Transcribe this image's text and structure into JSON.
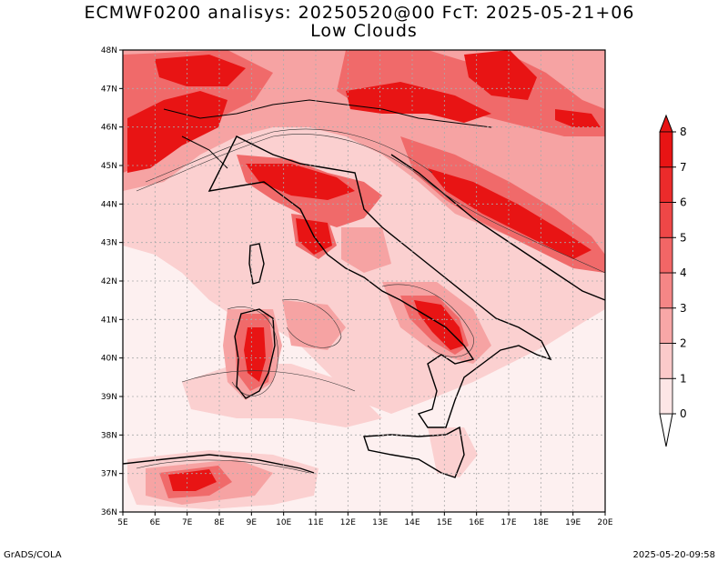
{
  "title_line1": "ECMWF0200 analisys: 20250520@00 FcT: 2025-05-21+06",
  "title_line2": "Low Clouds",
  "footer_left": "GrADS/COLA",
  "footer_right": "2025-05-20-09:58",
  "map": {
    "lon_min": 5,
    "lon_max": 20,
    "lat_min": 36,
    "lat_max": 48,
    "lon_ticks": [
      "5E",
      "6E",
      "7E",
      "8E",
      "9E",
      "10E",
      "11E",
      "12E",
      "13E",
      "14E",
      "15E",
      "16E",
      "17E",
      "18E",
      "19E",
      "20E"
    ],
    "lat_ticks": [
      "36N",
      "37N",
      "38N",
      "39N",
      "40N",
      "41N",
      "42N",
      "43N",
      "44N",
      "45N",
      "46N",
      "47N",
      "48N"
    ],
    "grid": "dotted"
  },
  "colorbar": {
    "levels": [
      "0",
      "1",
      "2",
      "3",
      "4",
      "5",
      "6",
      "7",
      "8"
    ],
    "colors": [
      "#fde6e6",
      "#fbcaca",
      "#f8a7a7",
      "#f58686",
      "#f26666",
      "#ef4747",
      "#ec2b2b",
      "#e81414"
    ]
  },
  "field_colors": {
    "background": "#fdf0f0",
    "level1": "#fbd0d0",
    "level2": "#f6a3a3",
    "level4": "#f06a6a",
    "level6": "#eb3030",
    "level8": "#e81414"
  }
}
